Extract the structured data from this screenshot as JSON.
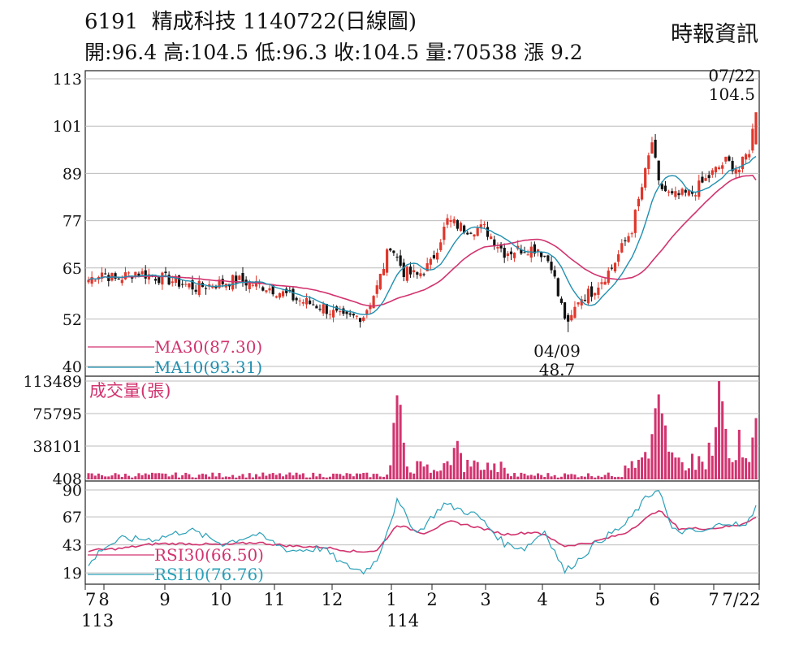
{
  "header": {
    "code": "6191",
    "name": "精成科技",
    "date": "1140722(日線圖)",
    "open_label": "開:",
    "open": "96.4",
    "high_label": "高:",
    "high": "104.5",
    "low_label": "低:",
    "low": "96.3",
    "close_label": "收:",
    "close": "104.5",
    "volume_label": "量:",
    "volume": "70538",
    "change_label": "漲",
    "change": "9.2",
    "source": "時報資訊"
  },
  "colors": {
    "up": "#e0362b",
    "down": "#111111",
    "ma30": "#d2336f",
    "ma10": "#1f8fb0",
    "volume": "#d2336f",
    "rsi30": "#d2336f",
    "rsi10": "#2aa0b8",
    "grid": "#bbbbbb"
  },
  "chart_data": [
    {
      "type": "candlestick",
      "y_ticks": [
        "113",
        "101",
        "89",
        "77",
        "65",
        "52",
        "40"
      ],
      "ylim": [
        40,
        113
      ],
      "annotations": [
        {
          "date": "07/22",
          "value": "104.5"
        },
        {
          "date": "04/09",
          "value": "48.7"
        }
      ],
      "legend": [
        {
          "label": "MA30(87.30)",
          "color": "#d2336f"
        },
        {
          "label": "MA10(93.31)",
          "color": "#1f8fb0"
        }
      ],
      "x_labels": [
        "7",
        "8",
        "9",
        "10",
        "11",
        "12",
        "1",
        "2",
        "3",
        "4",
        "5",
        "6",
        "7",
        "7/22"
      ],
      "x_sublabels": [
        "113",
        "114"
      ],
      "ohlc_anchors": [
        {
          "t": 0,
          "c": 62
        },
        {
          "t": 4,
          "c": 64
        },
        {
          "t": 8,
          "c": 62
        },
        {
          "t": 14,
          "c": 64
        },
        {
          "t": 24,
          "c": 62
        },
        {
          "t": 32,
          "c": 60
        },
        {
          "t": 44,
          "c": 62
        },
        {
          "t": 54,
          "c": 60
        },
        {
          "t": 62,
          "c": 57
        },
        {
          "t": 70,
          "c": 55
        },
        {
          "t": 76,
          "c": 52
        },
        {
          "t": 82,
          "c": 53
        },
        {
          "t": 86,
          "c": 60
        },
        {
          "t": 90,
          "c": 71
        },
        {
          "t": 94,
          "c": 64
        },
        {
          "t": 98,
          "c": 63
        },
        {
          "t": 102,
          "c": 66
        },
        {
          "t": 107,
          "c": 77
        },
        {
          "t": 112,
          "c": 75
        },
        {
          "t": 118,
          "c": 75
        },
        {
          "t": 124,
          "c": 69
        },
        {
          "t": 130,
          "c": 70
        },
        {
          "t": 134,
          "c": 70
        },
        {
          "t": 138,
          "c": 66
        },
        {
          "t": 140,
          "c": 58
        },
        {
          "t": 143,
          "c": 50
        },
        {
          "t": 146,
          "c": 57
        },
        {
          "t": 150,
          "c": 59
        },
        {
          "t": 156,
          "c": 65
        },
        {
          "t": 162,
          "c": 75
        },
        {
          "t": 166,
          "c": 89
        },
        {
          "t": 168,
          "c": 97
        },
        {
          "t": 170,
          "c": 86
        },
        {
          "t": 174,
          "c": 83
        },
        {
          "t": 180,
          "c": 84
        },
        {
          "t": 186,
          "c": 89
        },
        {
          "t": 190,
          "c": 92
        },
        {
          "t": 194,
          "c": 90
        },
        {
          "t": 197,
          "c": 95
        },
        {
          "t": 199,
          "c": 104.5
        }
      ]
    },
    {
      "type": "bar",
      "title": "成交量(張)",
      "y_ticks": [
        "113489",
        "75795",
        "38101",
        "408"
      ],
      "ylim": [
        408,
        113489
      ],
      "spikes": [
        {
          "t": 91,
          "v": 65000
        },
        {
          "t": 92,
          "v": 97000
        },
        {
          "t": 93,
          "v": 86000
        },
        {
          "t": 94,
          "v": 42000
        },
        {
          "t": 109,
          "v": 36000
        },
        {
          "t": 110,
          "v": 44000
        },
        {
          "t": 111,
          "v": 30000
        },
        {
          "t": 168,
          "v": 52000
        },
        {
          "t": 169,
          "v": 82000
        },
        {
          "t": 170,
          "v": 98000
        },
        {
          "t": 171,
          "v": 76000
        },
        {
          "t": 172,
          "v": 62000
        },
        {
          "t": 185,
          "v": 42000
        },
        {
          "t": 187,
          "v": 60000
        },
        {
          "t": 188,
          "v": 113489
        },
        {
          "t": 189,
          "v": 90000
        },
        {
          "t": 190,
          "v": 58000
        },
        {
          "t": 194,
          "v": 57000
        },
        {
          "t": 196,
          "v": 24000
        },
        {
          "t": 198,
          "v": 48000
        },
        {
          "t": 199,
          "v": 70538
        }
      ]
    },
    {
      "type": "line",
      "y_ticks": [
        "90",
        "67",
        "43",
        "19"
      ],
      "ylim": [
        10,
        90
      ],
      "legend": [
        {
          "label": "RSI30(66.50)",
          "color": "#d2336f"
        },
        {
          "label": "RSI10(76.76)",
          "color": "#2aa0b8"
        }
      ],
      "series": [
        {
          "name": "RSI30(66.50)",
          "anchors": [
            {
              "t": 0,
              "v": 38
            },
            {
              "t": 10,
              "v": 40
            },
            {
              "t": 20,
              "v": 44
            },
            {
              "t": 30,
              "v": 44
            },
            {
              "t": 40,
              "v": 43
            },
            {
              "t": 50,
              "v": 45
            },
            {
              "t": 60,
              "v": 42
            },
            {
              "t": 70,
              "v": 41
            },
            {
              "t": 80,
              "v": 37
            },
            {
              "t": 86,
              "v": 38
            },
            {
              "t": 92,
              "v": 60
            },
            {
              "t": 100,
              "v": 53
            },
            {
              "t": 108,
              "v": 63
            },
            {
              "t": 116,
              "v": 58
            },
            {
              "t": 124,
              "v": 52
            },
            {
              "t": 134,
              "v": 54
            },
            {
              "t": 142,
              "v": 42
            },
            {
              "t": 150,
              "v": 45
            },
            {
              "t": 160,
              "v": 53
            },
            {
              "t": 170,
              "v": 73
            },
            {
              "t": 176,
              "v": 57
            },
            {
              "t": 186,
              "v": 57
            },
            {
              "t": 194,
              "v": 60
            },
            {
              "t": 199,
              "v": 66.5
            }
          ]
        },
        {
          "name": "RSI10(76.76)",
          "anchors": [
            {
              "t": 0,
              "v": 25
            },
            {
              "t": 4,
              "v": 40
            },
            {
              "t": 10,
              "v": 48
            },
            {
              "t": 20,
              "v": 48
            },
            {
              "t": 30,
              "v": 56
            },
            {
              "t": 40,
              "v": 44
            },
            {
              "t": 50,
              "v": 52
            },
            {
              "t": 60,
              "v": 38
            },
            {
              "t": 70,
              "v": 40
            },
            {
              "t": 76,
              "v": 26
            },
            {
              "t": 82,
              "v": 20
            },
            {
              "t": 86,
              "v": 30
            },
            {
              "t": 92,
              "v": 80
            },
            {
              "t": 98,
              "v": 53
            },
            {
              "t": 106,
              "v": 78
            },
            {
              "t": 116,
              "v": 68
            },
            {
              "t": 124,
              "v": 44
            },
            {
              "t": 130,
              "v": 40
            },
            {
              "t": 136,
              "v": 55
            },
            {
              "t": 142,
              "v": 20
            },
            {
              "t": 146,
              "v": 30
            },
            {
              "t": 152,
              "v": 46
            },
            {
              "t": 160,
              "v": 60
            },
            {
              "t": 166,
              "v": 82
            },
            {
              "t": 170,
              "v": 92
            },
            {
              "t": 174,
              "v": 55
            },
            {
              "t": 184,
              "v": 54
            },
            {
              "t": 190,
              "v": 63
            },
            {
              "t": 196,
              "v": 58
            },
            {
              "t": 199,
              "v": 76.76
            }
          ]
        }
      ]
    }
  ]
}
